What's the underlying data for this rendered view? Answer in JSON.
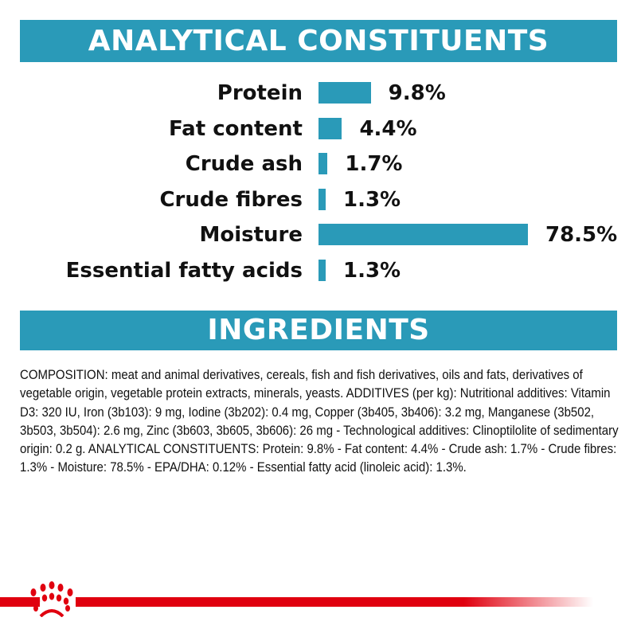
{
  "analytical_header": "ANALYTICAL CONSTITUENTS",
  "constituents": [
    {
      "label": "Protein",
      "value": 9.8,
      "display": "9.8%"
    },
    {
      "label": "Fat content",
      "value": 4.4,
      "display": "4.4%"
    },
    {
      "label": "Crude ash",
      "value": 1.7,
      "display": "1.7%"
    },
    {
      "label": "Crude fibres",
      "value": 1.3,
      "display": "1.3%"
    },
    {
      "label": "Moisture",
      "value": 78.5,
      "display": "78.5%"
    },
    {
      "label": "Essential fatty acids",
      "value": 1.3,
      "display": "1.3%"
    }
  ],
  "ingredients_header": "INGREDIENTS",
  "composition": "COMPOSITION: meat and animal derivatives, cereals, fish and fish derivatives, oils and fats, derivatives of vegetable origin, vegetable protein extracts, minerals, yeasts. ADDITIVES (per kg): Nutritional additives: Vitamin D3: 320 IU, Iron (3b103): 9 mg, Iodine (3b202): 0.4 mg, Copper (3b405, 3b406): 3.2 mg, Manganese (3b502, 3b503, 3b504): 2.6 mg, Zinc (3b603, 3b605, 3b606): 26 mg - Technological additives: Clinoptilolite of sedimentary origin: 0.2 g. ANALYTICAL CONSTITUENTS: Protein: 9.8% - Fat content: 4.4% - Crude ash: 1.7% - Crude fibres: 1.3% - Moisture: 78.5% - EPA/DHA: 0.12% - Essential fatty acid (linoleic acid): 1.3%.",
  "colors": {
    "accent": "#2a9ab8",
    "brand_red": "#e0000f"
  },
  "logo": "royal-canin-crown-logo"
}
